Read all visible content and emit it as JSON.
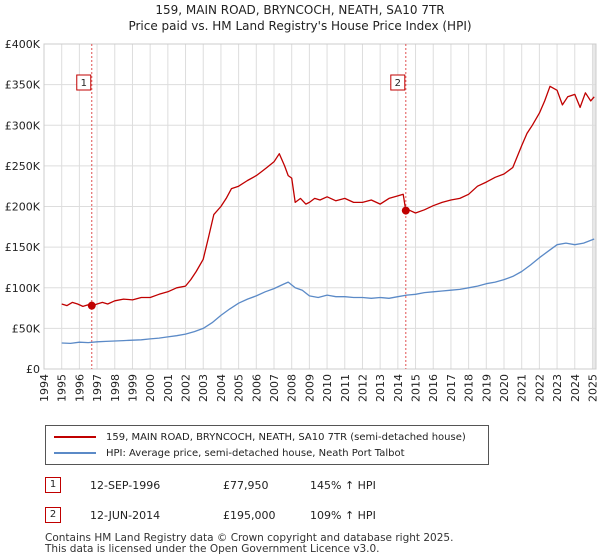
{
  "chart_data": {
    "type": "line",
    "title": "159, MAIN ROAD, BRYNCOCH, NEATH, SA10 7TR",
    "subtitle": "Price paid vs. HM Land Registry's House Price Index (HPI)",
    "xlim": [
      1994,
      2025.2
    ],
    "ylim": [
      0,
      400000
    ],
    "x_ticks": [
      "1994",
      "1995",
      "1996",
      "1997",
      "1998",
      "1999",
      "2000",
      "2001",
      "2002",
      "2003",
      "2004",
      "2005",
      "2006",
      "2007",
      "2008",
      "2009",
      "2010",
      "2011",
      "2012",
      "2013",
      "2014",
      "2015",
      "2016",
      "2017",
      "2018",
      "2019",
      "2020",
      "2021",
      "2022",
      "2023",
      "2024",
      "2025"
    ],
    "y_ticks": [
      {
        "value": 0,
        "label": "£0"
      },
      {
        "value": 50000,
        "label": "£50K"
      },
      {
        "value": 100000,
        "label": "£100K"
      },
      {
        "value": 150000,
        "label": "£150K"
      },
      {
        "value": 200000,
        "label": "£200K"
      },
      {
        "value": 250000,
        "label": "£250K"
      },
      {
        "value": 300000,
        "label": "£300K"
      },
      {
        "value": 350000,
        "label": "£350K"
      },
      {
        "value": 400000,
        "label": "£400K"
      }
    ],
    "grid": true,
    "shaded_span_start": 2025.0,
    "series": [
      {
        "name": "159, MAIN ROAD, BRYNCOCH, NEATH, SA10 7TR (semi-detached house)",
        "color": "#c00000",
        "x": [
          1995.0,
          1995.3,
          1995.6,
          1995.9,
          1996.2,
          1996.5,
          1996.7,
          1997.0,
          1997.3,
          1997.6,
          1998.0,
          1998.5,
          1999.0,
          1999.5,
          2000.0,
          2000.5,
          2001.0,
          2001.5,
          2002.0,
          2002.3,
          2002.6,
          2003.0,
          2003.3,
          2003.6,
          2004.0,
          2004.3,
          2004.6,
          2005.0,
          2005.5,
          2006.0,
          2006.3,
          2006.6,
          2007.0,
          2007.3,
          2007.6,
          2007.8,
          2008.0,
          2008.2,
          2008.5,
          2008.8,
          2009.0,
          2009.3,
          2009.6,
          2010.0,
          2010.5,
          2011.0,
          2011.5,
          2012.0,
          2012.5,
          2013.0,
          2013.5,
          2014.0,
          2014.3,
          2014.45,
          2014.6,
          2015.0,
          2015.5,
          2016.0,
          2016.5,
          2017.0,
          2017.5,
          2018.0,
          2018.5,
          2019.0,
          2019.5,
          2020.0,
          2020.5,
          2021.0,
          2021.3,
          2021.6,
          2022.0,
          2022.3,
          2022.6,
          2023.0,
          2023.3,
          2023.6,
          2024.0,
          2024.3,
          2024.6,
          2024.9,
          2025.1
        ],
        "values": [
          80000,
          78000,
          82000,
          80000,
          77000,
          79000,
          77950,
          80000,
          82000,
          80000,
          84000,
          86000,
          85000,
          88000,
          88000,
          92000,
          95000,
          100000,
          102000,
          110000,
          120000,
          135000,
          162000,
          190000,
          200000,
          210000,
          222000,
          225000,
          232000,
          238000,
          243000,
          248000,
          255000,
          265000,
          250000,
          238000,
          235000,
          205000,
          210000,
          203000,
          205000,
          210000,
          208000,
          212000,
          207000,
          210000,
          205000,
          205000,
          208000,
          203000,
          210000,
          213000,
          215000,
          195000,
          196000,
          192000,
          196000,
          201000,
          205000,
          208000,
          210000,
          215000,
          225000,
          230000,
          236000,
          240000,
          248000,
          275000,
          290000,
          300000,
          315000,
          330000,
          348000,
          343000,
          325000,
          335000,
          338000,
          322000,
          340000,
          330000,
          335000
        ]
      },
      {
        "name": "HPI: Average price, semi-detached house, Neath Port Talbot",
        "color": "#5b8ac7",
        "x": [
          1995.0,
          1995.5,
          1996.0,
          1996.5,
          1997.0,
          1997.5,
          1998.0,
          1998.5,
          1999.0,
          1999.5,
          2000.0,
          2000.5,
          2001.0,
          2001.5,
          2002.0,
          2002.5,
          2003.0,
          2003.5,
          2004.0,
          2004.5,
          2005.0,
          2005.5,
          2006.0,
          2006.5,
          2007.0,
          2007.5,
          2007.8,
          2008.2,
          2008.6,
          2009.0,
          2009.5,
          2010.0,
          2010.5,
          2011.0,
          2011.5,
          2012.0,
          2012.5,
          2013.0,
          2013.5,
          2014.0,
          2014.5,
          2015.0,
          2015.5,
          2016.0,
          2016.5,
          2017.0,
          2017.5,
          2018.0,
          2018.5,
          2019.0,
          2019.5,
          2020.0,
          2020.5,
          2021.0,
          2021.5,
          2022.0,
          2022.5,
          2023.0,
          2023.5,
          2024.0,
          2024.5,
          2025.1
        ],
        "values": [
          32000,
          31500,
          33000,
          32500,
          33500,
          34000,
          34500,
          35000,
          35500,
          36000,
          37000,
          38000,
          39500,
          41000,
          43000,
          46000,
          50000,
          57000,
          66000,
          74000,
          81000,
          86000,
          90000,
          95000,
          99000,
          104000,
          107000,
          100000,
          97000,
          90000,
          88000,
          91000,
          89000,
          89000,
          88000,
          88000,
          87000,
          88000,
          87000,
          89000,
          91000,
          92000,
          94000,
          95000,
          96000,
          97000,
          98000,
          100000,
          102000,
          105000,
          107000,
          110000,
          114000,
          120000,
          128000,
          137000,
          145000,
          153000,
          155000,
          153000,
          155000,
          160000
        ]
      }
    ],
    "markers": [
      {
        "label": "1",
        "x": 1996.7,
        "y": 77950,
        "box_y": 352000
      },
      {
        "label": "2",
        "x": 2014.45,
        "y": 195000,
        "box_y": 352000
      }
    ]
  },
  "legend": {
    "items": [
      {
        "label": "159, MAIN ROAD, BRYNCOCH, NEATH, SA10 7TR (semi-detached house)",
        "color": "#c00000"
      },
      {
        "label": "HPI: Average price, semi-detached house, Neath Port Talbot",
        "color": "#5b8ac7"
      }
    ]
  },
  "transactions": [
    {
      "num": "1",
      "date": "12-SEP-1996",
      "price": "£77,950",
      "hpi": "145% ↑ HPI"
    },
    {
      "num": "2",
      "date": "12-JUN-2014",
      "price": "£195,000",
      "hpi": "109% ↑ HPI"
    }
  ],
  "footer": {
    "line1": "Contains HM Land Registry data © Crown copyright and database right 2025.",
    "line2": "This data is licensed under the Open Government Licence v3.0."
  }
}
